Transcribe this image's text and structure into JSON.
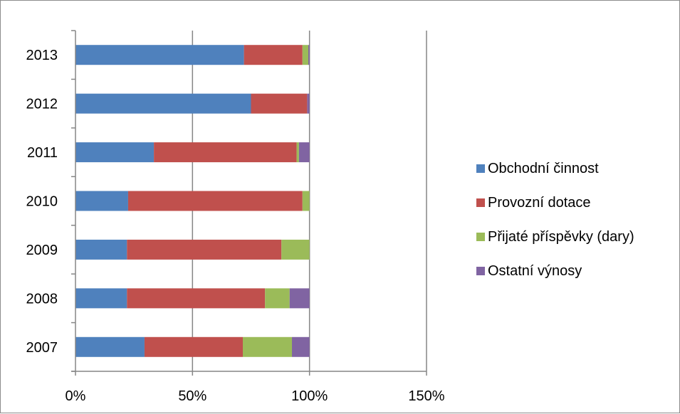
{
  "chart_data": {
    "type": "bar",
    "orientation": "horizontal",
    "stacked": true,
    "categories": [
      "2007",
      "2008",
      "2009",
      "2010",
      "2011",
      "2012",
      "2013"
    ],
    "series": [
      {
        "name": "Obchodní činnost",
        "color": "#4F81BD",
        "values": [
          29.5,
          22,
          22,
          22.5,
          33.5,
          75,
          72
        ]
      },
      {
        "name": "Provozní dotace",
        "color": "#C0504D",
        "values": [
          42,
          59,
          66,
          74.5,
          61,
          24,
          25
        ]
      },
      {
        "name": "Přijaté příspěvky (dary)",
        "color": "#9BBB59",
        "values": [
          21,
          10.5,
          12,
          3,
          1,
          0,
          2.5
        ]
      },
      {
        "name": "Ostatní výnosy",
        "color": "#8064A2",
        "values": [
          7.5,
          8.5,
          0,
          0,
          4.5,
          1,
          0.5
        ]
      }
    ],
    "xlim": [
      0,
      150
    ],
    "xticks": [
      "0%",
      "50%",
      "100%",
      "150%"
    ],
    "xtick_values": [
      0,
      50,
      100,
      150
    ],
    "grid": true,
    "legend_position": "right"
  }
}
